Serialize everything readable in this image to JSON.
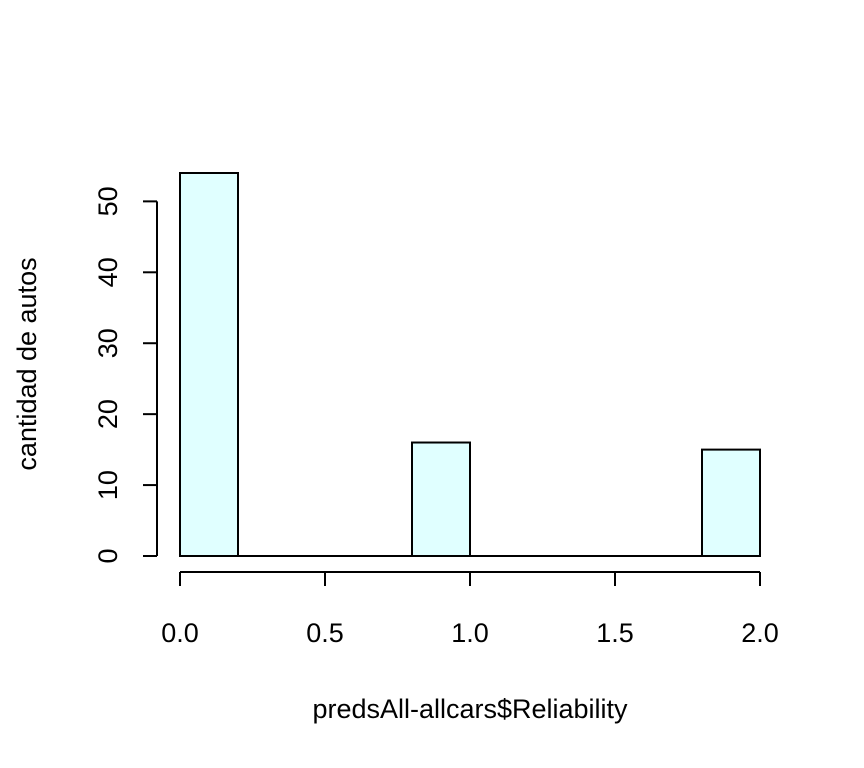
{
  "chart_data": {
    "type": "bar",
    "title": "",
    "xlabel": "predsAll-allcars$Reliability",
    "ylabel": "cantidad de autos",
    "bins": [
      {
        "start": 0.0,
        "end": 0.2,
        "count": 54
      },
      {
        "start": 0.2,
        "end": 0.4,
        "count": 0
      },
      {
        "start": 0.4,
        "end": 0.6,
        "count": 0
      },
      {
        "start": 0.6,
        "end": 0.8,
        "count": 0
      },
      {
        "start": 0.8,
        "end": 1.0,
        "count": 16
      },
      {
        "start": 1.0,
        "end": 1.2,
        "count": 0
      },
      {
        "start": 1.2,
        "end": 1.4,
        "count": 0
      },
      {
        "start": 1.4,
        "end": 1.6,
        "count": 0
      },
      {
        "start": 1.6,
        "end": 1.8,
        "count": 0
      },
      {
        "start": 1.8,
        "end": 2.0,
        "count": 15
      }
    ],
    "xlim": [
      0,
      2
    ],
    "ylim": [
      0,
      54
    ],
    "x_ticks": [
      "0.0",
      "0.5",
      "1.0",
      "1.5",
      "2.0"
    ],
    "y_ticks": [
      "0",
      "10",
      "20",
      "30",
      "40",
      "50"
    ],
    "bar_fill": "#e0ffff",
    "bar_stroke": "#000000",
    "grid": false,
    "legend": "none"
  }
}
